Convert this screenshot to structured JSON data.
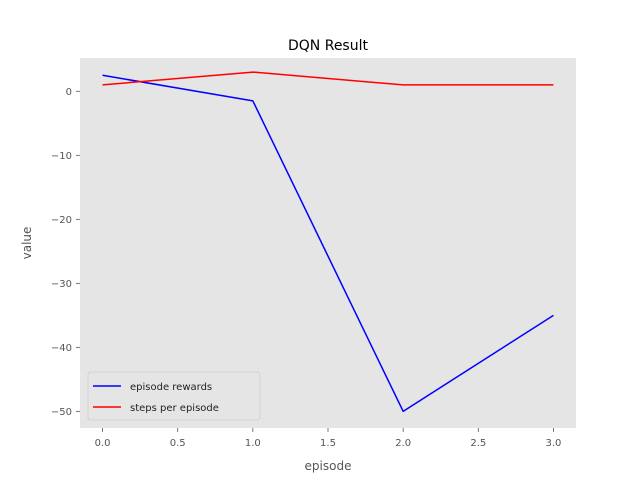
{
  "chart_data": {
    "type": "line",
    "title": "DQN Result",
    "xlabel": "episode",
    "ylabel": "value",
    "xlim": [
      -0.15,
      3.15
    ],
    "ylim": [
      -52.6,
      5.2
    ],
    "xticks": [
      0.0,
      0.5,
      1.0,
      1.5,
      2.0,
      2.5,
      3.0
    ],
    "xtick_labels": [
      "0.0",
      "0.5",
      "1.0",
      "1.5",
      "2.0",
      "2.5",
      "3.0"
    ],
    "yticks": [
      0,
      -10,
      -20,
      -30,
      -40,
      -50
    ],
    "ytick_labels": [
      "0",
      "−10",
      "−20",
      "−30",
      "−40",
      "−50"
    ],
    "grid": false,
    "background": "#e5e5e5",
    "legend": "lower-left",
    "series": [
      {
        "name": "episode rewards",
        "color": "#0000ff",
        "x": [
          0,
          1,
          2,
          3
        ],
        "y": [
          2.5,
          -1.5,
          -50,
          -35
        ]
      },
      {
        "name": "steps per episode",
        "color": "#ff0000",
        "x": [
          0,
          1,
          2,
          3
        ],
        "y": [
          1,
          3,
          1,
          1
        ]
      }
    ]
  }
}
